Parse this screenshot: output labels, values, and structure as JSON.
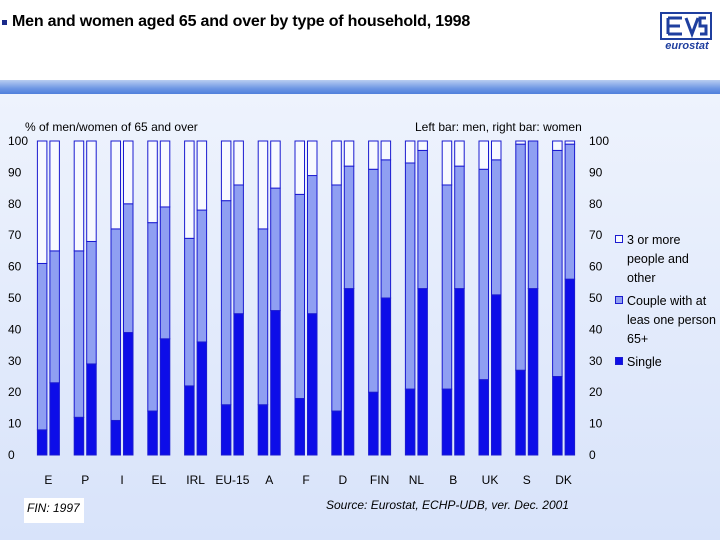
{
  "header": {
    "title": "Men and women aged 65 and over by type of household, 1998",
    "logo_text": "eurostat"
  },
  "colors": {
    "single": "#0d0de8",
    "couple": "#8f9ff2",
    "other": "#f7f9ff",
    "outline": "#1b1bd0"
  },
  "chart_data": {
    "type": "bar",
    "stacked": true,
    "title": "Men and women aged 65 and over by type of household, 1998",
    "ylabel": "% of men/women of 65 and over",
    "subtitle": "Left bar: men, right bar: women",
    "ylim": [
      0,
      100
    ],
    "yticks": [
      0,
      10,
      20,
      30,
      40,
      50,
      60,
      70,
      80,
      90,
      100
    ],
    "categories": [
      "E",
      "P",
      "I",
      "EL",
      "IRL",
      "EU-15",
      "A",
      "F",
      "D",
      "FIN",
      "NL",
      "B",
      "UK",
      "S",
      "DK"
    ],
    "series": [
      {
        "name": "Single",
        "men": [
          8,
          12,
          11,
          14,
          22,
          16,
          16,
          18,
          14,
          20,
          21,
          21,
          24,
          27,
          25
        ],
        "women": [
          23,
          29,
          39,
          37,
          36,
          45,
          46,
          45,
          53,
          50,
          53,
          53,
          51,
          53,
          56
        ]
      },
      {
        "name": "Couple with at least one person 65+",
        "men": [
          53,
          53,
          61,
          60,
          47,
          65,
          56,
          65,
          72,
          71,
          72,
          65,
          67,
          72,
          72
        ],
        "women": [
          42,
          39,
          41,
          42,
          42,
          41,
          39,
          44,
          39,
          44,
          44,
          39,
          43,
          47,
          43
        ]
      },
      {
        "name": "3 or more people and other",
        "men": [
          39,
          35,
          28,
          26,
          31,
          19,
          28,
          17,
          14,
          9,
          7,
          14,
          9,
          1,
          3
        ],
        "women": [
          35,
          32,
          20,
          21,
          22,
          14,
          15,
          11,
          8,
          6,
          3,
          8,
          6,
          0,
          1
        ]
      }
    ],
    "legend": [
      "3 or more people and other",
      "Couple with at leas one person 65+",
      "Single"
    ]
  },
  "notes": {
    "left": "FIN: 1997",
    "source": "Source: Eurostat, ECHP-UDB, ver. Dec. 2001"
  }
}
